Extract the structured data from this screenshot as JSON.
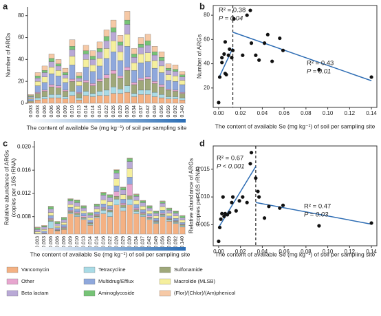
{
  "chart_data": [
    {
      "type": "bar",
      "panel_label": "a",
      "ylabel": "Number of ARGs",
      "xlabel": "The content of available Se (mg kg⁻¹) of soil per sampling site",
      "categories": [
        "0.003",
        "0.003",
        "0.006",
        "0.006",
        "0.006",
        "0.009",
        "0.010",
        "0.013",
        "0.014",
        "0.014",
        "0.016",
        "0.022",
        "0.026",
        "0.029",
        "0.030",
        "0.034",
        "0.037",
        "0.042",
        "0.049",
        "0.056",
        "0.059",
        "0.092",
        "0.140"
      ],
      "ylim": [
        0,
        88
      ],
      "yticks": [
        0,
        20,
        40,
        60,
        80
      ],
      "series": [
        {
          "color": "#f4b183",
          "values": [
            1,
            3,
            4,
            5,
            5,
            4,
            7,
            3,
            7,
            6,
            7,
            7,
            9,
            9,
            10,
            6,
            8,
            8,
            6,
            5,
            4,
            4,
            3
          ]
        },
        {
          "color": "#a9dbe6",
          "values": [
            0,
            2,
            2,
            3,
            3,
            2,
            4,
            2,
            4,
            3,
            4,
            5,
            6,
            4,
            6,
            3,
            4,
            4,
            4,
            3,
            2,
            2,
            2
          ]
        },
        {
          "color": "#9fa87a",
          "values": [
            1,
            4,
            5,
            7,
            6,
            5,
            9,
            4,
            8,
            7,
            9,
            11,
            12,
            10,
            14,
            8,
            9,
            10,
            8,
            7,
            6,
            5,
            4
          ]
        },
        {
          "color": "#e7a6cf",
          "values": [
            0,
            1,
            1,
            2,
            2,
            1,
            2,
            1,
            2,
            2,
            2,
            3,
            3,
            2,
            3,
            2,
            2,
            2,
            2,
            2,
            1,
            1,
            1
          ]
        },
        {
          "color": "#8fa8dc",
          "values": [
            2,
            6,
            7,
            10,
            9,
            7,
            13,
            6,
            12,
            11,
            12,
            15,
            17,
            14,
            19,
            11,
            14,
            14,
            12,
            11,
            8,
            8,
            7
          ]
        },
        {
          "color": "#f5ef9d",
          "values": [
            1,
            4,
            5,
            6,
            5,
            4,
            8,
            4,
            7,
            6,
            7,
            9,
            10,
            8,
            11,
            7,
            8,
            8,
            7,
            6,
            5,
            5,
            4
          ]
        },
        {
          "color": "#b9a9d6",
          "values": [
            1,
            3,
            4,
            5,
            4,
            3,
            6,
            3,
            5,
            5,
            6,
            7,
            8,
            6,
            9,
            5,
            6,
            7,
            5,
            5,
            4,
            4,
            3
          ]
        },
        {
          "color": "#76c376",
          "values": [
            1,
            2,
            2,
            3,
            2,
            2,
            3,
            2,
            3,
            3,
            3,
            4,
            4,
            3,
            4,
            3,
            3,
            4,
            3,
            3,
            2,
            2,
            2
          ]
        },
        {
          "color": "#f6c9a6",
          "values": [
            1,
            3,
            4,
            4,
            4,
            4,
            6,
            3,
            5,
            5,
            6,
            6,
            7,
            6,
            8,
            5,
            6,
            6,
            5,
            5,
            4,
            4,
            3
          ]
        }
      ]
    },
    {
      "type": "scatter",
      "panel_label": "b",
      "ylabel": "Number of ARGs",
      "xlabel": "The content of available Se (mg kg⁻¹) of soil per sampling site",
      "x": [
        0.0,
        0.001,
        0.003,
        0.003,
        0.005,
        0.006,
        0.007,
        0.006,
        0.009,
        0.01,
        0.012,
        0.013,
        0.014,
        0.022,
        0.026,
        0.029,
        0.03,
        0.034,
        0.037,
        0.042,
        0.045,
        0.049,
        0.056,
        0.059,
        0.092,
        0.14
      ],
      "y": [
        8,
        29,
        41,
        45,
        48,
        32,
        31,
        58,
        47,
        52,
        45,
        51,
        77,
        47,
        80,
        84,
        57,
        47,
        43,
        57,
        64,
        42,
        61,
        51,
        35,
        29
      ],
      "xlim": [
        -0.005,
        0.145
      ],
      "ylim": [
        4,
        88
      ],
      "xticks": [
        {
          "value": 0,
          "label": "0.00"
        },
        0.02,
        0.04,
        0.06,
        0.08,
        {
          "value": 0.1,
          "label": "0.10"
        },
        0.12,
        0.14
      ],
      "yticks": [
        20,
        40,
        60,
        80
      ],
      "threshold": 0.013,
      "color": "#111111",
      "fit_color": "#2e6db4",
      "fits": [
        {
          "x": [
            0,
            0.013
          ],
          "y": [
            28,
            53
          ]
        },
        {
          "x": [
            0.013,
            0.14
          ],
          "y": [
            66,
            26
          ]
        }
      ],
      "annotations": [
        "R² = 0.38",
        "P = 0.04",
        "R² = 0.43",
        "P = 0.01"
      ]
    },
    {
      "type": "bar",
      "panel_label": "c",
      "ylabel": [
        "Relative abundance of ARGs",
        "(copies per 16S rRNA)"
      ],
      "xlabel": "The content of available Se (mg kg⁻¹) of soil per sampling site",
      "categories": [
        "0.003",
        "0.003",
        "0.006",
        "0.006",
        "0.006",
        "0.009",
        "0.010",
        "0.013",
        "0.014",
        "0.014",
        "0.016",
        "0.022",
        "0.026",
        "0.029",
        "0.030",
        "0.034",
        "0.037",
        "0.042",
        "0.049",
        "0.056",
        "0.059",
        "0.092",
        "0.140"
      ],
      "ylim": [
        0.005,
        0.021
      ],
      "yticks": [
        0.008,
        0.012,
        0.016,
        {
          "value": 0.02,
          "label": "0.020"
        }
      ],
      "series": [
        {
          "name": "Vancomycin",
          "color": "#f4b183",
          "values": [
            0.0045,
            0.0048,
            0.006,
            0.0055,
            0.0058,
            0.0085,
            0.008,
            0.0075,
            0.0065,
            0.0078,
            0.0085,
            0.008,
            0.01,
            0.009,
            0.01,
            0.0085,
            0.008,
            0.0075,
            0.0068,
            0.008,
            0.0072,
            0.0068,
            0.0062
          ]
        },
        {
          "name": "Tetracycline",
          "color": "#a9dbe6",
          "values": [
            0.0001,
            0.0001,
            0.0012,
            0.0001,
            0.0001,
            0.0002,
            0.0003,
            0.0002,
            0.0002,
            0.0002,
            0.0006,
            0.0008,
            0.001,
            0.0006,
            0.001,
            0.0004,
            0.0003,
            0.0002,
            0.0002,
            0.0002,
            0.0002,
            0.0002,
            0.0002
          ]
        },
        {
          "name": "Sulfonamide",
          "color": "#9fa87a",
          "values": [
            0.0001,
            0.0002,
            0.0003,
            0.0001,
            0.0002,
            0.0002,
            0.0003,
            0.0002,
            0.0002,
            0.0002,
            0.0003,
            0.0003,
            0.0005,
            0.0004,
            0.0006,
            0.0003,
            0.0002,
            0.0002,
            0.0002,
            0.0002,
            0.0002,
            0.0002,
            0.0002
          ]
        },
        {
          "name": "Other",
          "color": "#e7a6cf",
          "values": [
            0.0001,
            0.0001,
            0.0002,
            0.0001,
            0.0001,
            0.0002,
            0.0002,
            0.0002,
            0.0001,
            0.0002,
            0.0002,
            0.0002,
            0.0008,
            0.0003,
            0.002,
            0.0003,
            0.0002,
            0.0002,
            0.0001,
            0.0002,
            0.0001,
            0.0001,
            0.0001
          ]
        },
        {
          "name": "Multidrug/Efflux",
          "color": "#8fa8dc",
          "values": [
            0.0003,
            0.0003,
            0.0005,
            0.0003,
            0.0004,
            0.0005,
            0.0005,
            0.0005,
            0.0004,
            0.0004,
            0.0006,
            0.0006,
            0.001,
            0.0007,
            0.0012,
            0.0006,
            0.0005,
            0.0004,
            0.0004,
            0.0005,
            0.0004,
            0.0004,
            0.0003
          ]
        },
        {
          "name": "Macrolide (MLSB)",
          "color": "#f5ef9d",
          "values": [
            0.0003,
            0.0003,
            0.0005,
            0.0003,
            0.0004,
            0.0005,
            0.0005,
            0.0004,
            0.0004,
            0.0005,
            0.0007,
            0.0007,
            0.0012,
            0.0008,
            0.0015,
            0.0007,
            0.0006,
            0.0005,
            0.0004,
            0.0006,
            0.0005,
            0.0004,
            0.0004
          ]
        },
        {
          "name": "Beta lactam",
          "color": "#b9a9d6",
          "values": [
            0.0004,
            0.0004,
            0.0006,
            0.0004,
            0.0005,
            0.0006,
            0.0006,
            0.0005,
            0.0005,
            0.0005,
            0.0008,
            0.0007,
            0.001,
            0.0008,
            0.0012,
            0.0007,
            0.0006,
            0.0005,
            0.0005,
            0.0006,
            0.0005,
            0.0005,
            0.0004
          ]
        },
        {
          "name": "Aminoglycoside",
          "color": "#76c376",
          "values": [
            0.0003,
            0.0002,
            0.0004,
            0.0003,
            0.0003,
            0.0003,
            0.0004,
            0.0003,
            0.0003,
            0.0003,
            0.0004,
            0.0004,
            0.0005,
            0.0004,
            0.0005,
            0.0003,
            0.0003,
            0.0003,
            0.0003,
            0.0003,
            0.0003,
            0.0003,
            0.0003
          ]
        },
        {
          "name": "(Flor)/(Chlor)/(Am)phenicol",
          "color": "#f6c9a6",
          "values": [
            0.0001,
            0.0001,
            0.0001,
            0.0001,
            0.0001,
            0.0001,
            0.0001,
            0.0001,
            0.0001,
            0.0001,
            0.0001,
            0.0001,
            0.0001,
            0.0001,
            0.0001,
            0.0001,
            0.0001,
            0.0001,
            0.0001,
            0.0001,
            0.0001,
            0.0001,
            0.0001
          ]
        }
      ]
    },
    {
      "type": "scatter",
      "panel_label": "d",
      "ylabel": [
        "Relative abundance of ARGs",
        "(copies per 16S rRNA)"
      ],
      "xlabel": "The content of available Se (mg kg⁻¹) of soil per sampling site",
      "x": [
        0.0,
        0.001,
        0.002,
        0.003,
        0.004,
        0.005,
        0.006,
        0.008,
        0.01,
        0.012,
        0.013,
        0.016,
        0.019,
        0.022,
        0.026,
        0.029,
        0.03,
        0.034,
        0.036,
        0.037,
        0.042,
        0.046,
        0.056,
        0.059,
        0.092,
        0.14
      ],
      "y": [
        0.002,
        0.0045,
        0.006,
        0.007,
        0.01,
        0.0065,
        0.007,
        0.0068,
        0.0072,
        0.009,
        0.01,
        0.0075,
        0.0093,
        0.01,
        0.009,
        0.016,
        0.018,
        0.0134,
        0.011,
        0.01,
        0.0062,
        0.0083,
        0.008,
        0.0085,
        0.0048,
        0.0053
      ],
      "xlim": [
        -0.005,
        0.145
      ],
      "ylim": [
        0.0012,
        0.0192
      ],
      "xticks": [
        {
          "value": 0,
          "label": "0.00"
        },
        0.02,
        0.04,
        0.06,
        0.08,
        {
          "value": 0.1,
          "label": "0.10"
        },
        0.12,
        0.14
      ],
      "yticks": [
        0.005,
        {
          "value": 0.01,
          "label": "0.010"
        },
        0.015
      ],
      "threshold": 0.034,
      "color": "#111111",
      "fit_color": "#2e6db4",
      "fits": [
        {
          "x": [
            0,
            0.034
          ],
          "y": [
            0.0045,
            0.0155
          ]
        },
        {
          "x": [
            0.034,
            0.14
          ],
          "y": [
            0.009,
            0.0051
          ]
        }
      ],
      "annotations": [
        "R² = 0.67",
        "P < 0.001",
        "R² = 0.47",
        "P = 0.03"
      ]
    }
  ]
}
